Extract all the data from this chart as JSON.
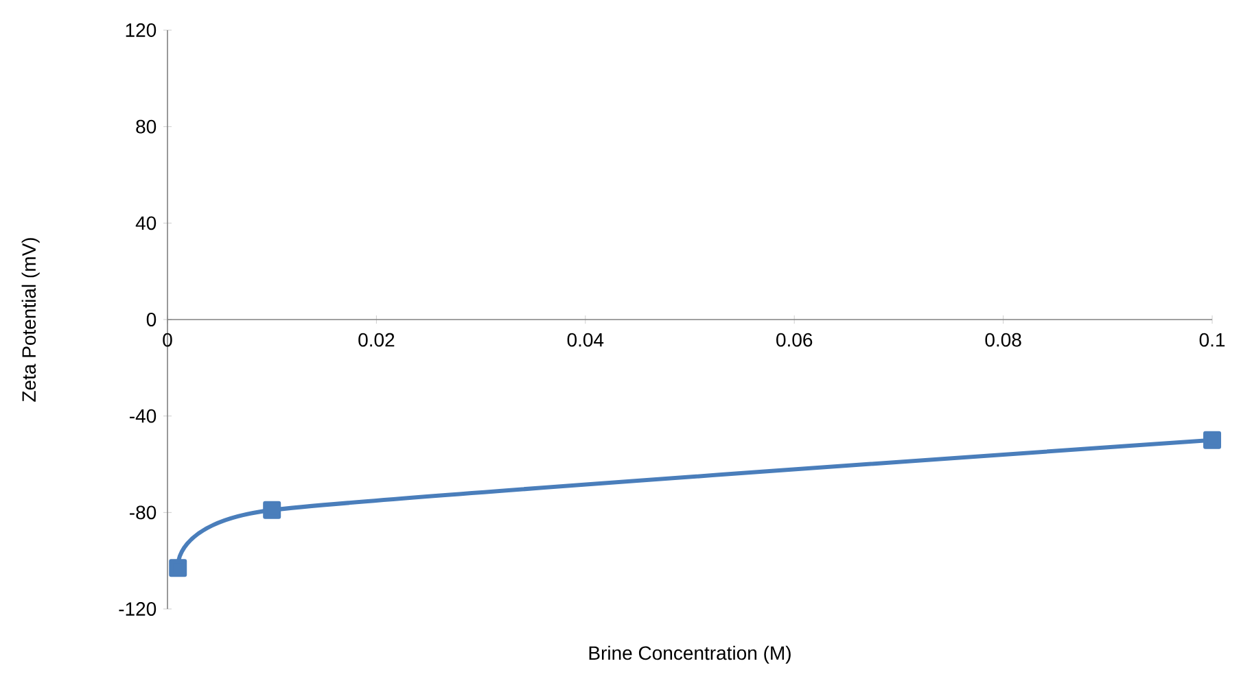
{
  "chart_data": {
    "type": "line",
    "xlabel": "Brine Concentration (M)",
    "ylabel": "Zeta Potential (mV)",
    "x": [
      0.001,
      0.01,
      0.1
    ],
    "series": [
      {
        "color": "#4a7ebb",
        "values": [
          -103,
          -79,
          -50
        ]
      }
    ],
    "xlim": [
      0,
      0.1
    ],
    "xticks": [
      0,
      0.02,
      0.04,
      0.06,
      0.08,
      0.1
    ],
    "ylim": [
      -120,
      120
    ],
    "yticks": [
      -120,
      -80,
      -40,
      0,
      40,
      80,
      120
    ],
    "marker": "square",
    "line_style": "solid"
  }
}
